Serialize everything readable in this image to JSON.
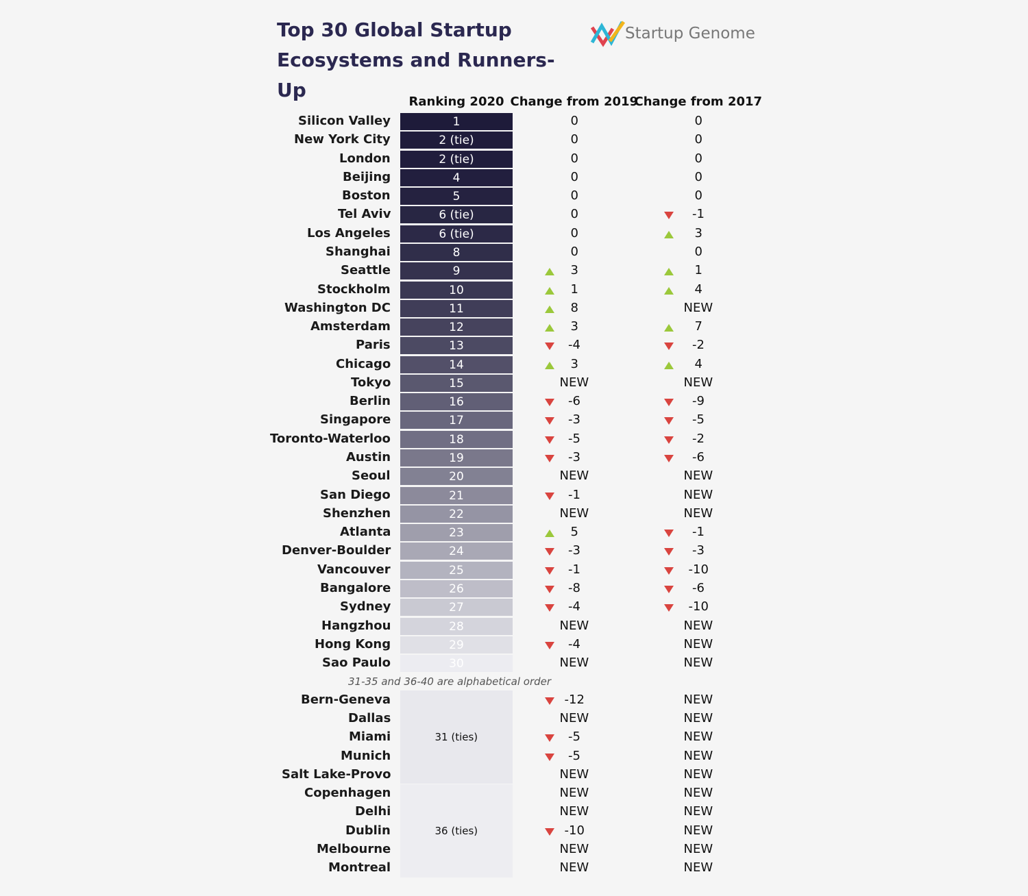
{
  "header": {
    "title": "Top 30 Global Startup Ecosystems and Runners-Up",
    "logo": "Startup Genome"
  },
  "table": {
    "columns": [
      "Ranking 2020",
      "Change from 2019",
      "Change from 2017"
    ],
    "rows": [
      [
        "Silicon Valley",
        "1",
        0,
        0
      ],
      [
        "New York City",
        "2 (tie)",
        0,
        0
      ],
      [
        "London",
        "2 (tie)",
        0,
        0
      ],
      [
        "Beijing",
        "4",
        0,
        0
      ],
      [
        "Boston",
        "5",
        0,
        0
      ],
      [
        "Tel Aviv",
        "6 (tie)",
        0,
        -1
      ],
      [
        "Los Angeles",
        "6 (tie)",
        0,
        3
      ],
      [
        "Shanghai",
        "8",
        0,
        0
      ],
      [
        "Seattle",
        "9",
        3,
        1
      ],
      [
        "Stockholm",
        "10",
        1,
        4
      ],
      [
        "Washington DC",
        "11",
        8,
        "NEW"
      ],
      [
        "Amsterdam",
        "12",
        3,
        7
      ],
      [
        "Paris",
        "13",
        -4,
        -2
      ],
      [
        "Chicago",
        "14",
        3,
        4
      ],
      [
        "Tokyo",
        "15",
        "NEW",
        "NEW"
      ],
      [
        "Berlin",
        "16",
        -6,
        -9
      ],
      [
        "Singapore",
        "17",
        -3,
        -5
      ],
      [
        "Toronto-Waterloo",
        "18",
        -5,
        -2
      ],
      [
        "Austin",
        "19",
        -3,
        -6
      ],
      [
        "Seoul",
        "20",
        "NEW",
        "NEW"
      ],
      [
        "San Diego",
        "21",
        -1,
        "NEW"
      ],
      [
        "Shenzhen",
        "22",
        "NEW",
        "NEW"
      ],
      [
        "Atlanta",
        "23",
        5,
        -1
      ],
      [
        "Denver-Boulder",
        "24",
        -3,
        -3
      ],
      [
        "Vancouver",
        "25",
        -1,
        -10
      ],
      [
        "Bangalore",
        "26",
        -8,
        -6
      ],
      [
        "Sydney",
        "27",
        -4,
        -10
      ],
      [
        "Hangzhou",
        "28",
        "NEW",
        "NEW"
      ],
      [
        "Hong Kong",
        "29",
        -4,
        "NEW"
      ],
      [
        "Sao Paulo",
        "30",
        "NEW",
        "NEW"
      ]
    ],
    "note": "31-35 and 36-40 are alphabetical order",
    "runners_up": [
      {
        "rank": "31 (ties)",
        "rows": [
          [
            "Bern-Geneva",
            -12,
            "NEW"
          ],
          [
            "Dallas",
            "NEW",
            "NEW"
          ],
          [
            "Miami",
            -5,
            "NEW"
          ],
          [
            "Munich",
            -5,
            "NEW"
          ],
          [
            "Salt Lake-Provo",
            "NEW",
            "NEW"
          ]
        ]
      },
      {
        "rank": "36 (ties)",
        "rows": [
          [
            "Copenhagen",
            "NEW",
            "NEW"
          ],
          [
            "Delhi",
            "NEW",
            "NEW"
          ],
          [
            "Dublin",
            -10,
            "NEW"
          ],
          [
            "Melbourne",
            "NEW",
            "NEW"
          ],
          [
            "Montreal",
            "NEW",
            "NEW"
          ]
        ]
      }
    ]
  }
}
